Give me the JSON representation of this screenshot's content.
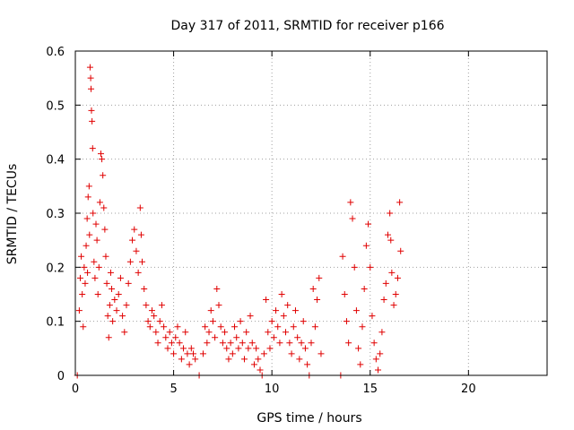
{
  "colors": {
    "series": "#e00000",
    "background": "#ffffff",
    "grid": "#a0a0a0",
    "axis": "#000000"
  },
  "chart_data": {
    "type": "scatter",
    "title": "Day 317 of 2011, SRMTID for receiver p166",
    "xlabel": "GPS time / hours",
    "ylabel": "SRMTID / TECUs",
    "xlim": [
      0,
      24
    ],
    "ylim": [
      0,
      0.6
    ],
    "xticks": [
      0,
      5,
      10,
      15,
      20
    ],
    "yticks": [
      0,
      0.1,
      0.2,
      0.3,
      0.4,
      0.5,
      0.6
    ],
    "xtick_labels": [
      "0",
      "5",
      "10",
      "15",
      "20"
    ],
    "ytick_labels": [
      "0",
      "0.1",
      "0.2",
      "0.3",
      "0.4",
      "0.5",
      "0.6"
    ],
    "grid": true,
    "legend": "none",
    "series": [
      {
        "name": "SRMTID p166",
        "marker": "plus",
        "points": [
          [
            0.1,
            0.0
          ],
          [
            0.2,
            0.12
          ],
          [
            0.25,
            0.18
          ],
          [
            0.3,
            0.22
          ],
          [
            0.35,
            0.15
          ],
          [
            0.4,
            0.09
          ],
          [
            0.45,
            0.2
          ],
          [
            0.5,
            0.17
          ],
          [
            0.55,
            0.24
          ],
          [
            0.6,
            0.29
          ],
          [
            0.62,
            0.19
          ],
          [
            0.65,
            0.33
          ],
          [
            0.7,
            0.35
          ],
          [
            0.72,
            0.26
          ],
          [
            0.75,
            0.57
          ],
          [
            0.78,
            0.55
          ],
          [
            0.8,
            0.53
          ],
          [
            0.82,
            0.49
          ],
          [
            0.85,
            0.47
          ],
          [
            0.88,
            0.42
          ],
          [
            0.9,
            0.3
          ],
          [
            0.95,
            0.21
          ],
          [
            1.0,
            0.18
          ],
          [
            1.05,
            0.28
          ],
          [
            1.1,
            0.25
          ],
          [
            1.15,
            0.15
          ],
          [
            1.2,
            0.2
          ],
          [
            1.25,
            0.32
          ],
          [
            1.3,
            0.41
          ],
          [
            1.35,
            0.4
          ],
          [
            1.4,
            0.37
          ],
          [
            1.45,
            0.31
          ],
          [
            1.5,
            0.27
          ],
          [
            1.55,
            0.22
          ],
          [
            1.6,
            0.17
          ],
          [
            1.65,
            0.11
          ],
          [
            1.7,
            0.07
          ],
          [
            1.75,
            0.13
          ],
          [
            1.8,
            0.19
          ],
          [
            1.85,
            0.16
          ],
          [
            1.9,
            0.1
          ],
          [
            2.0,
            0.14
          ],
          [
            2.1,
            0.12
          ],
          [
            2.2,
            0.15
          ],
          [
            2.3,
            0.18
          ],
          [
            2.4,
            0.11
          ],
          [
            2.5,
            0.08
          ],
          [
            2.6,
            0.13
          ],
          [
            2.7,
            0.17
          ],
          [
            2.8,
            0.21
          ],
          [
            2.9,
            0.25
          ],
          [
            3.0,
            0.27
          ],
          [
            3.1,
            0.23
          ],
          [
            3.2,
            0.19
          ],
          [
            3.3,
            0.31
          ],
          [
            3.35,
            0.26
          ],
          [
            3.4,
            0.21
          ],
          [
            3.5,
            0.16
          ],
          [
            3.6,
            0.13
          ],
          [
            3.7,
            0.1
          ],
          [
            3.8,
            0.09
          ],
          [
            3.9,
            0.12
          ],
          [
            4.0,
            0.11
          ],
          [
            4.1,
            0.08
          ],
          [
            4.2,
            0.06
          ],
          [
            4.3,
            0.1
          ],
          [
            4.4,
            0.13
          ],
          [
            4.5,
            0.09
          ],
          [
            4.6,
            0.07
          ],
          [
            4.7,
            0.05
          ],
          [
            4.8,
            0.08
          ],
          [
            4.9,
            0.06
          ],
          [
            5.0,
            0.04
          ],
          [
            5.1,
            0.07
          ],
          [
            5.2,
            0.09
          ],
          [
            5.3,
            0.06
          ],
          [
            5.4,
            0.03
          ],
          [
            5.5,
            0.05
          ],
          [
            5.6,
            0.08
          ],
          [
            5.7,
            0.04
          ],
          [
            5.8,
            0.02
          ],
          [
            5.9,
            0.05
          ],
          [
            6.0,
            0.04
          ],
          [
            6.1,
            0.03
          ],
          [
            6.3,
            0.0
          ],
          [
            6.5,
            0.04
          ],
          [
            6.6,
            0.09
          ],
          [
            6.7,
            0.06
          ],
          [
            6.8,
            0.08
          ],
          [
            6.9,
            0.12
          ],
          [
            7.0,
            0.1
          ],
          [
            7.1,
            0.07
          ],
          [
            7.2,
            0.16
          ],
          [
            7.3,
            0.13
          ],
          [
            7.4,
            0.09
          ],
          [
            7.5,
            0.06
          ],
          [
            7.6,
            0.08
          ],
          [
            7.7,
            0.05
          ],
          [
            7.8,
            0.03
          ],
          [
            7.9,
            0.06
          ],
          [
            8.0,
            0.04
          ],
          [
            8.1,
            0.09
          ],
          [
            8.2,
            0.07
          ],
          [
            8.3,
            0.05
          ],
          [
            8.4,
            0.1
          ],
          [
            8.5,
            0.06
          ],
          [
            8.6,
            0.03
          ],
          [
            8.7,
            0.08
          ],
          [
            8.8,
            0.05
          ],
          [
            8.9,
            0.11
          ],
          [
            9.0,
            0.06
          ],
          [
            9.1,
            0.02
          ],
          [
            9.2,
            0.05
          ],
          [
            9.3,
            0.03
          ],
          [
            9.4,
            0.01
          ],
          [
            9.5,
            0.0
          ],
          [
            9.6,
            0.04
          ],
          [
            9.7,
            0.14
          ],
          [
            9.8,
            0.08
          ],
          [
            9.9,
            0.05
          ],
          [
            10.0,
            0.1
          ],
          [
            10.1,
            0.07
          ],
          [
            10.2,
            0.12
          ],
          [
            10.3,
            0.09
          ],
          [
            10.4,
            0.06
          ],
          [
            10.5,
            0.15
          ],
          [
            10.6,
            0.11
          ],
          [
            10.7,
            0.08
          ],
          [
            10.8,
            0.13
          ],
          [
            10.9,
            0.06
          ],
          [
            11.0,
            0.04
          ],
          [
            11.1,
            0.09
          ],
          [
            11.2,
            0.12
          ],
          [
            11.3,
            0.07
          ],
          [
            11.4,
            0.03
          ],
          [
            11.5,
            0.06
          ],
          [
            11.6,
            0.1
          ],
          [
            11.7,
            0.05
          ],
          [
            11.8,
            0.02
          ],
          [
            11.9,
            0.0
          ],
          [
            12.0,
            0.06
          ],
          [
            12.1,
            0.16
          ],
          [
            12.2,
            0.09
          ],
          [
            12.3,
            0.14
          ],
          [
            12.4,
            0.18
          ],
          [
            12.5,
            0.04
          ],
          [
            13.5,
            0.0
          ],
          [
            13.6,
            0.22
          ],
          [
            13.7,
            0.15
          ],
          [
            13.8,
            0.1
          ],
          [
            13.9,
            0.06
          ],
          [
            14.0,
            0.32
          ],
          [
            14.1,
            0.29
          ],
          [
            14.2,
            0.2
          ],
          [
            14.3,
            0.12
          ],
          [
            14.4,
            0.05
          ],
          [
            14.5,
            0.02
          ],
          [
            14.6,
            0.09
          ],
          [
            14.7,
            0.16
          ],
          [
            14.8,
            0.24
          ],
          [
            14.9,
            0.28
          ],
          [
            15.0,
            0.2
          ],
          [
            15.1,
            0.11
          ],
          [
            15.2,
            0.06
          ],
          [
            15.3,
            0.03
          ],
          [
            15.4,
            0.01
          ],
          [
            15.5,
            0.04
          ],
          [
            15.6,
            0.08
          ],
          [
            15.7,
            0.14
          ],
          [
            15.8,
            0.17
          ],
          [
            15.9,
            0.26
          ],
          [
            16.0,
            0.3
          ],
          [
            16.05,
            0.25
          ],
          [
            16.1,
            0.19
          ],
          [
            16.2,
            0.13
          ],
          [
            16.3,
            0.15
          ],
          [
            16.4,
            0.18
          ],
          [
            16.5,
            0.32
          ],
          [
            16.55,
            0.23
          ]
        ]
      }
    ]
  }
}
